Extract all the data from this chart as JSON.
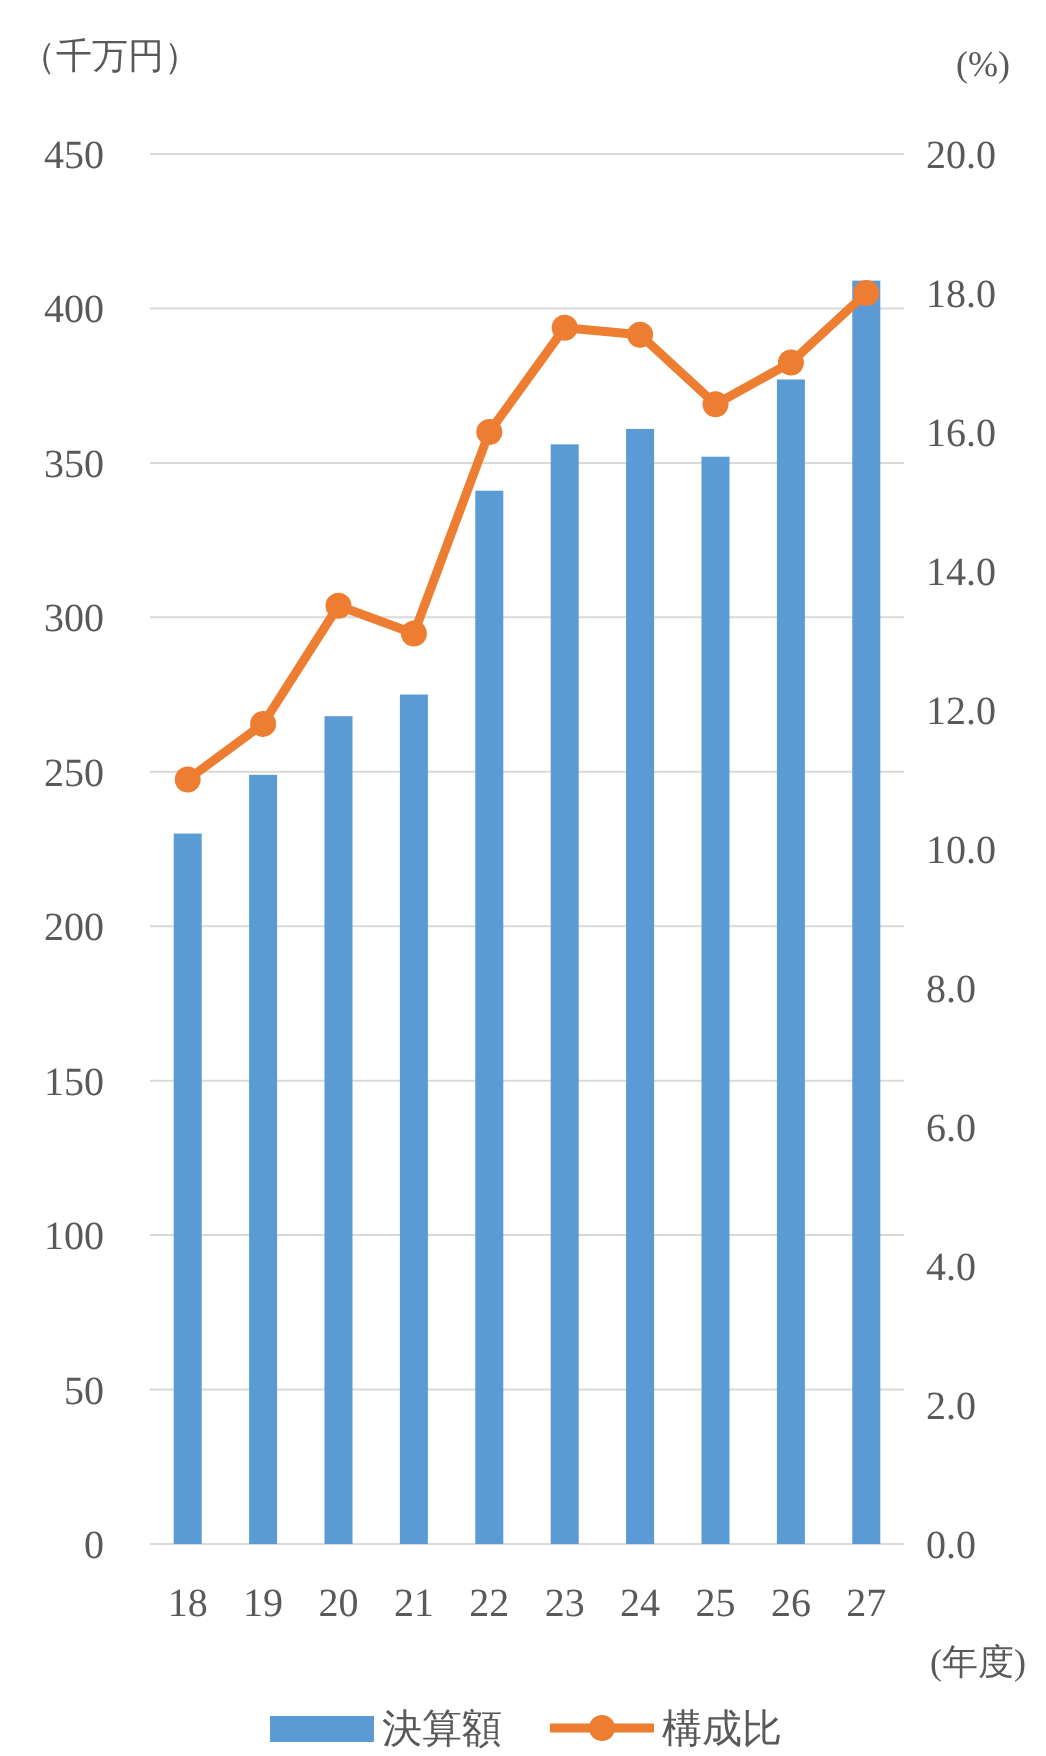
{
  "chart_data": {
    "type": "bar",
    "ylabel": "（千万円）",
    "y2label": "(%)",
    "xlabel": "(年度)",
    "categories": [
      "18",
      "19",
      "20",
      "21",
      "22",
      "23",
      "24",
      "25",
      "26",
      "27"
    ],
    "series": [
      {
        "name": "決算額",
        "color": "#5b9bd5",
        "values": [
          230,
          249,
          268,
          275,
          341,
          356,
          361,
          352,
          377,
          409
        ]
      },
      {
        "name": "構成比",
        "type": "line",
        "axis": "y2",
        "color": "#ed7d31",
        "marker": "circle",
        "line_style": "solid",
        "values": [
          11.0,
          11.8,
          13.5,
          13.1,
          16.0,
          17.5,
          17.4,
          16.4,
          17.0,
          18.0
        ]
      }
    ],
    "ylim": [
      0,
      450
    ],
    "yticks": [
      0,
      50,
      100,
      150,
      200,
      250,
      300,
      350,
      400,
      450
    ],
    "y2lim": [
      0,
      20
    ],
    "y2ticks": [
      {
        "value": 0,
        "label": "0.0"
      },
      {
        "value": 2,
        "label": "2.0"
      },
      {
        "value": 4,
        "label": "4.0"
      },
      {
        "value": 6,
        "label": "6.0"
      },
      {
        "value": 8,
        "label": "8.0"
      },
      {
        "value": 10,
        "label": "10.0"
      },
      {
        "value": 12,
        "label": "12.0"
      },
      {
        "value": 14,
        "label": "14.0"
      },
      {
        "value": 16,
        "label": "16.0"
      },
      {
        "value": 18,
        "label": "18.0"
      },
      {
        "value": 20,
        "label": "20.0"
      }
    ],
    "grid": "y",
    "legend": "bottom"
  }
}
